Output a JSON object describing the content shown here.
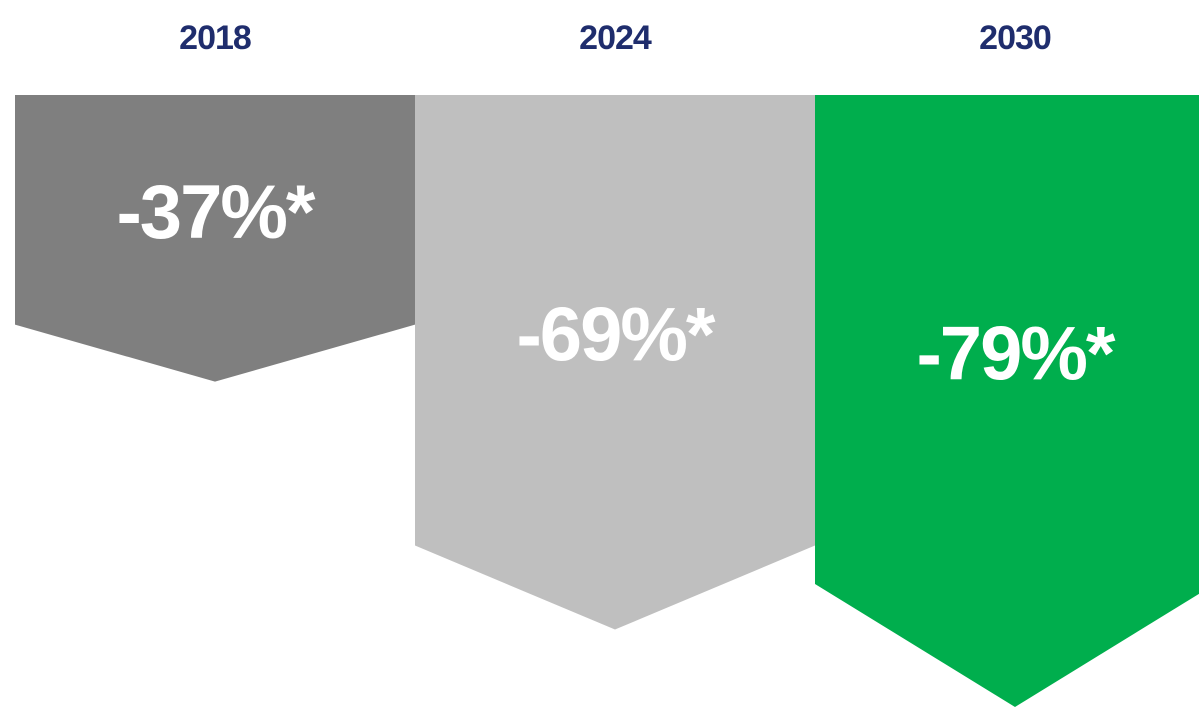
{
  "chart_data": {
    "type": "bar",
    "categories": [
      "2018",
      "2024",
      "2030"
    ],
    "values": [
      -37,
      -69,
      -79
    ],
    "value_labels": [
      "-37%*",
      "-69%*",
      "-79%*"
    ],
    "colors": [
      "#7f7f7f",
      "#bfbfbf",
      "#00ae4d"
    ],
    "category_label_color": "#1f2d6d",
    "value_label_color": "#ffffff",
    "title": "",
    "xlabel": "",
    "ylabel": "",
    "ylim": [
      -79,
      0
    ],
    "grid": false,
    "legend": "none",
    "shape": "chevron-down-arrow"
  }
}
